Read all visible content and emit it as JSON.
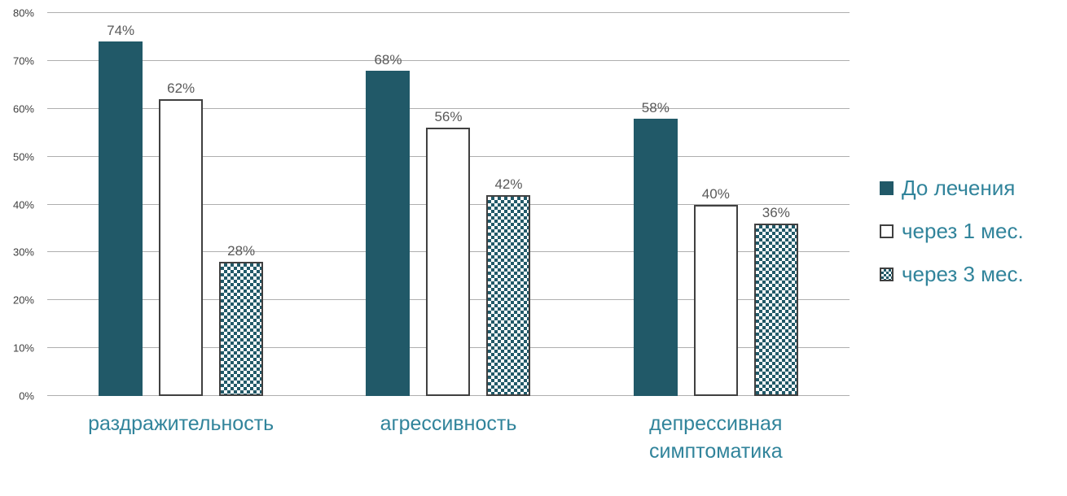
{
  "chart_data": {
    "type": "bar",
    "categories": [
      "раздражительность",
      "агрессивность",
      "депрессивная симптоматика"
    ],
    "series": [
      {
        "name": "До лечения",
        "values": [
          74,
          68,
          58
        ],
        "style": "solid"
      },
      {
        "name": "через 1 мес.",
        "values": [
          62,
          56,
          40
        ],
        "style": "outline"
      },
      {
        "name": "через 3 мес.",
        "values": [
          28,
          42,
          36
        ],
        "style": "checker"
      }
    ],
    "data_labels": [
      [
        "74%",
        "68%",
        "58%"
      ],
      [
        "62%",
        "56%",
        "40%"
      ],
      [
        "28%",
        "42%",
        "36%"
      ]
    ],
    "ylim": [
      0,
      80
    ],
    "ytick_step": 10,
    "ytick_labels": [
      "0%",
      "10%",
      "20%",
      "30%",
      "40%",
      "50%",
      "60%",
      "70%",
      "80%"
    ],
    "xlabel": "",
    "ylabel": "",
    "title": "",
    "grid": true,
    "legend_position": "right",
    "colors": {
      "bar_fill": "#215968",
      "bar_border": "#404040",
      "category_label": "#31849b",
      "legend_label": "#31849b",
      "value_label": "#595959",
      "tick_label": "#404040",
      "gridline": "#afafaf",
      "background": "#ffffff"
    }
  }
}
